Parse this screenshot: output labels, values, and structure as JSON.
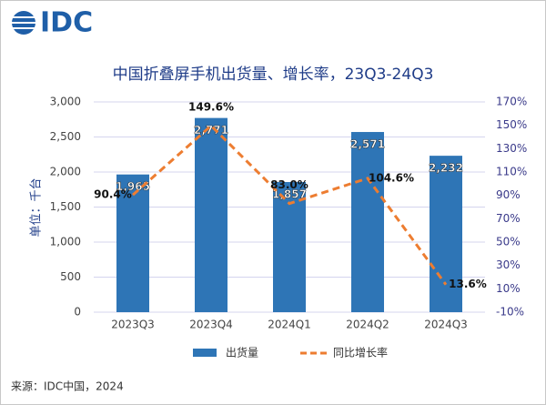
{
  "logo": "IDC",
  "chart_data": {
    "type": "bar",
    "title": "中国折叠屏手机出货量、增长率，23Q3-24Q3",
    "y_label": "单位：千台",
    "source": "来源：IDC中国，2024",
    "categories": [
      "2023Q3",
      "2023Q4",
      "2024Q1",
      "2024Q2",
      "2024Q3"
    ],
    "series": [
      {
        "name": "出货量",
        "type": "bar",
        "color": "#2e75b6",
        "values": [
          1965,
          2771,
          1857,
          2571,
          2232
        ],
        "value_labels": [
          "1,965",
          "2,771",
          "1,857",
          "2,571",
          "2,232"
        ]
      },
      {
        "name": "同比增长率",
        "type": "line",
        "axis": "y2",
        "color": "#ed7d31",
        "values": [
          90.4,
          149.6,
          83.0,
          104.6,
          13.6
        ],
        "value_labels": [
          "90.4%",
          "149.6%",
          "83.0%",
          "104.6%",
          "13.6%"
        ]
      }
    ],
    "ylim": [
      0,
      3000
    ],
    "yticks": [
      0,
      500,
      {
        "value": 1000,
        "label": "1,000"
      },
      {
        "value": 1500,
        "label": "1,500"
      },
      {
        "value": 2000,
        "label": "2,000"
      },
      {
        "value": 2500,
        "label": "2,500"
      },
      {
        "value": 3000,
        "label": "3,000"
      }
    ],
    "y2lim": [
      -10,
      170
    ],
    "y2ticks": [
      {
        "value": -10,
        "label": "-10%"
      },
      {
        "value": 10,
        "label": "10%"
      },
      {
        "value": 30,
        "label": "30%"
      },
      {
        "value": 50,
        "label": "50%"
      },
      {
        "value": 70,
        "label": "70%"
      },
      {
        "value": 90,
        "label": "90%"
      },
      {
        "value": 110,
        "label": "110%"
      },
      {
        "value": 130,
        "label": "130%"
      },
      {
        "value": 150,
        "label": "150%"
      },
      {
        "value": 170,
        "label": "170%"
      }
    ],
    "grid": true
  }
}
